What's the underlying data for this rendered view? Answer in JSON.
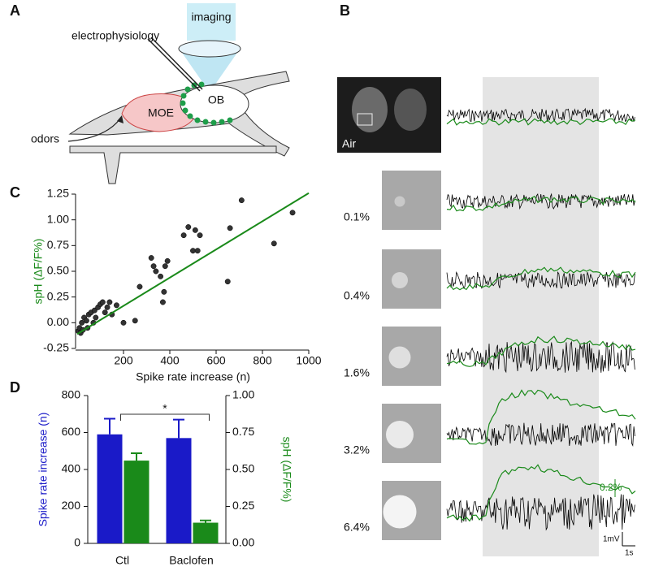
{
  "panel_a": {
    "letter": "A",
    "imaging": "imaging",
    "electrophysiology": "electrophysiology",
    "moe": "MOE",
    "ob": "OB",
    "odors": "odors"
  },
  "panel_b": {
    "letter": "B",
    "rows": [
      "Air",
      "0.1%",
      "0.4%",
      "1.6%",
      "3.2%",
      "6.4%"
    ],
    "scale_df": "0.2%",
    "scale_mv": "1mV",
    "scale_time": "1s"
  },
  "chart_data": [
    {
      "type": "scatter",
      "letter": "C",
      "x_label": "Spike rate increase (n)",
      "y_label": "spH (ΔF/F%)",
      "y_label_color": "#1a8a1a",
      "xlim": [
        0,
        1000
      ],
      "xticks": [
        200,
        400,
        600,
        800,
        1000
      ],
      "ylim": [
        -0.25,
        1.25
      ],
      "yticks": [
        -0.25,
        {
          "value": 0,
          "label": "0.00"
        },
        0.25,
        {
          "value": 0.5,
          "label": "0.50"
        },
        0.75,
        {
          "value": 1,
          "label": "1.00"
        },
        1.25
      ],
      "series": [
        {
          "color": "#333333",
          "marker": "circle",
          "x": [
            5,
            10,
            15,
            20,
            25,
            30,
            40,
            45,
            50,
            60,
            70,
            75,
            80,
            90,
            100,
            110,
            120,
            130,
            140,
            150,
            170,
            200,
            250,
            270,
            320,
            330,
            340,
            360,
            370,
            375,
            380,
            390,
            460,
            480,
            500,
            510,
            520,
            530,
            650,
            660,
            710,
            850,
            930
          ],
          "values": [
            -0.08,
            -0.05,
            -0.1,
            0.0,
            -0.07,
            0.05,
            0.02,
            -0.05,
            0.08,
            0.1,
            0.0,
            0.12,
            0.05,
            0.15,
            0.18,
            0.2,
            0.1,
            0.15,
            0.2,
            0.08,
            0.17,
            0.0,
            0.02,
            0.35,
            0.63,
            0.55,
            0.5,
            0.45,
            0.2,
            0.3,
            0.55,
            0.6,
            0.85,
            0.93,
            0.7,
            0.9,
            0.7,
            0.85,
            0.4,
            0.92,
            1.19,
            0.77,
            1.07
          ]
        },
        {
          "color": "#1a8a1a",
          "marker": "line",
          "x": [
            0,
            1000
          ],
          "values": [
            -0.11,
            1.26
          ]
        }
      ]
    },
    {
      "type": "bar",
      "letter": "D",
      "y_label": "Spike rate increase (n)",
      "y_label_color": "#1a1ac8",
      "y2_label": "spH (ΔF/F%)",
      "y2_label_color": "#1a8a1a",
      "categories": [
        "Ctl",
        "Baclofen"
      ],
      "ylim": [
        0,
        800
      ],
      "yticks": [
        0,
        200,
        400,
        600,
        800
      ],
      "y2lim": [
        0,
        1
      ],
      "y2ticks": [
        {
          "value": 0,
          "label": "0.00"
        },
        0.25,
        {
          "value": 0.5,
          "label": "0.50"
        },
        0.75,
        {
          "value": 1,
          "label": "1.00"
        }
      ],
      "annotation": "*",
      "series": [
        {
          "color": "#1a1ac8",
          "values": [
            590,
            570
          ],
          "errors": [
            85,
            100
          ]
        },
        {
          "color": "#1a8a1a",
          "values": [
            0.56,
            0.14
          ],
          "errors": [
            0.05,
            0.015
          ],
          "axis": "y2"
        }
      ]
    }
  ]
}
